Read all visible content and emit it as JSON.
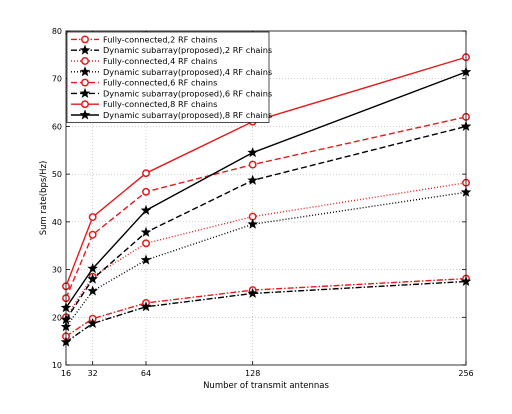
{
  "chart_data": {
    "type": "line",
    "title": "",
    "xlabel": "Number of transmit antennas",
    "ylabel": "Sum rate(bps/Hz)",
    "xlim": [
      16,
      256
    ],
    "ylim": [
      10,
      80
    ],
    "x_ticks": [
      16,
      32,
      64,
      128,
      256
    ],
    "y_ticks": [
      10,
      20,
      30,
      40,
      50,
      60,
      70,
      80
    ],
    "grid": true,
    "legend_position": "top-left",
    "x": [
      16,
      32,
      64,
      128,
      256
    ],
    "series": [
      {
        "name": "Fully-connected,2 RF chains",
        "color": "#e41a1c",
        "line": "dashdot",
        "marker": "circle",
        "values": [
          16.0,
          19.7,
          23.0,
          25.7,
          28.1
        ]
      },
      {
        "name": "Dynamic subarray(proposed),2 RF chains",
        "color": "#000000",
        "line": "dashdot",
        "marker": "star",
        "values": [
          14.8,
          18.7,
          22.2,
          25.0,
          27.5
        ]
      },
      {
        "name": "Fully-connected,4 RF chains",
        "color": "#e41a1c",
        "line": "dotted",
        "marker": "circle",
        "values": [
          20.0,
          28.5,
          35.5,
          41.1,
          48.2
        ]
      },
      {
        "name": "Dynamic subarray(proposed),4 RF chains",
        "color": "#000000",
        "line": "dotted",
        "marker": "star",
        "values": [
          18.0,
          25.5,
          32.0,
          39.5,
          46.2
        ]
      },
      {
        "name": "Fully-connected,6 RF chains",
        "color": "#e41a1c",
        "line": "dashed",
        "marker": "circle",
        "values": [
          24.0,
          37.3,
          46.3,
          52.0,
          62.0
        ]
      },
      {
        "name": "Dynamic subarray(proposed),6 RF chains",
        "color": "#000000",
        "line": "dashed",
        "marker": "star",
        "values": [
          19.5,
          28.0,
          37.8,
          48.7,
          60.0
        ]
      },
      {
        "name": "Fully-connected,8 RF chains",
        "color": "#e41a1c",
        "line": "solid",
        "marker": "circle",
        "values": [
          26.5,
          41.0,
          50.2,
          61.0,
          74.5
        ]
      },
      {
        "name": "Dynamic subarray(proposed),8 RF chains",
        "color": "#000000",
        "line": "solid",
        "marker": "star",
        "values": [
          22.0,
          30.2,
          42.4,
          54.5,
          71.4
        ]
      }
    ]
  }
}
